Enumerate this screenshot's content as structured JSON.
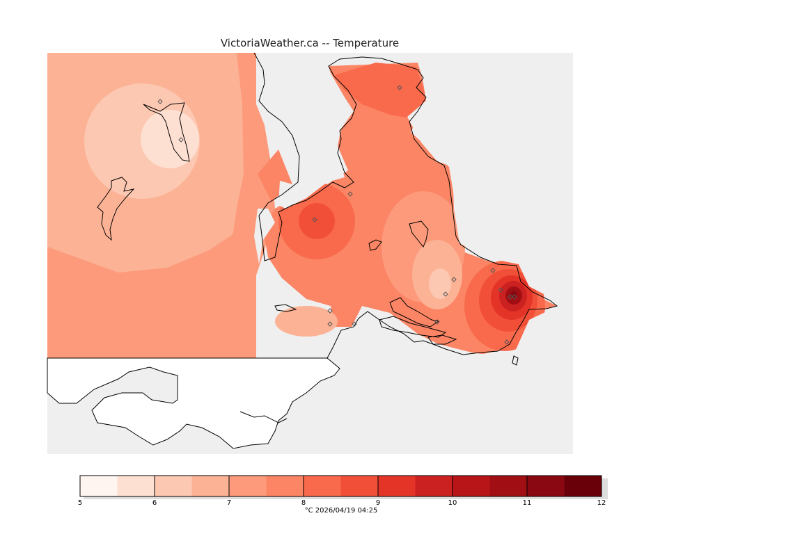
{
  "title": "VictoriaWeather.ca -- Temperature",
  "legend": {
    "min": 5,
    "max": 12,
    "step": 0.5,
    "tick_labels": [
      "5",
      "6",
      "7",
      "8",
      "9",
      "10",
      "11",
      "12"
    ],
    "colors": [
      "#fff5f0",
      "#fee0d2",
      "#fcc8b2",
      "#fcb295",
      "#fc9a7b",
      "#fb8565",
      "#f96a4c",
      "#f24f39",
      "#e43428",
      "#cb2121",
      "#b81518",
      "#a10f14",
      "#8a0812",
      "#690009"
    ],
    "caption": "°C  2026/04/19 04:25"
  },
  "colors": {
    "ocean": "#efefef",
    "land_outline": "#000000",
    "station_marker": "#555555"
  }
}
